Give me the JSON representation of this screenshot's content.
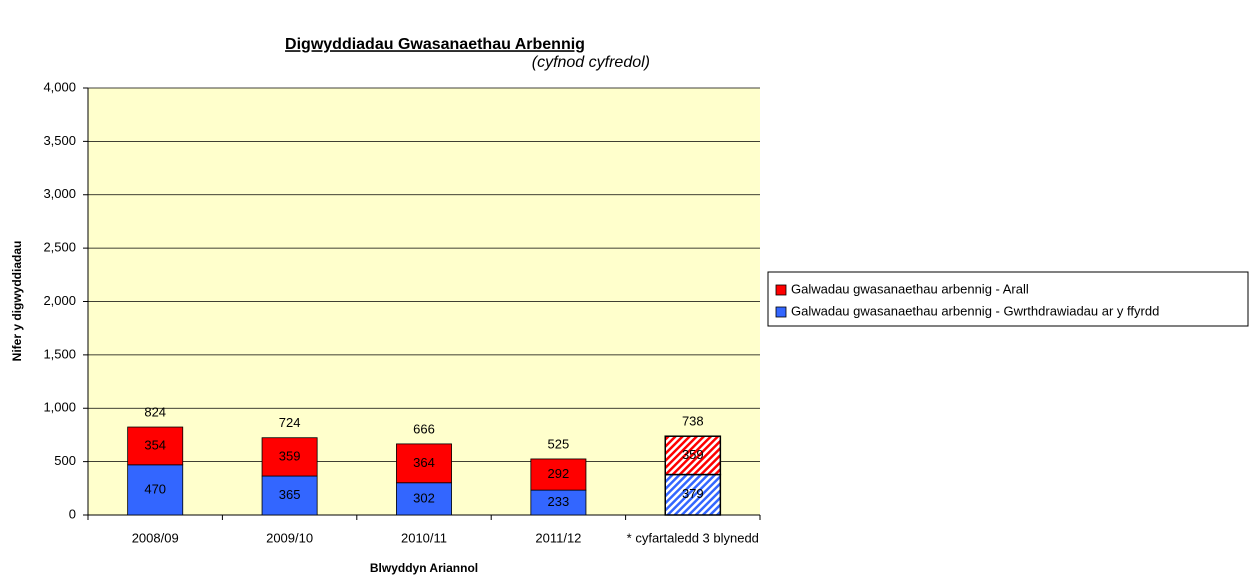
{
  "chart_data": {
    "type": "stacked_bar",
    "title": "Digwyddiadau Gwasanaethau Arbennig",
    "subtitle": "(cyfnod cyfredol)",
    "x_label": "Blwyddyn Ariannol",
    "y_label": "Nifer y digwyddiadau",
    "categories": [
      "2008/09",
      "2009/10",
      "2010/11",
      "2011/12",
      "* cyfartaledd 3 blynedd"
    ],
    "series": [
      {
        "name": "Galwadau gwasanaethau arbennig - Gwrthdrawiadau ar y ffyrdd",
        "color": "#3366ff",
        "values": [
          470,
          365,
          302,
          233,
          379
        ]
      },
      {
        "name": "Galwadau gwasanaethau arbennig - Arall",
        "color": "#ff0000",
        "values": [
          354,
          359,
          364,
          292,
          359
        ]
      }
    ],
    "totals": [
      824,
      724,
      666,
      525,
      738
    ],
    "hatched": [
      false,
      false,
      false,
      false,
      true
    ],
    "ylim": [
      0,
      4000
    ],
    "yticks": [
      0,
      {
        "value": 500,
        "label": "500"
      },
      {
        "value": 1000,
        "label": "1,000"
      },
      {
        "value": 1500,
        "label": "1,500"
      },
      {
        "value": 2000,
        "label": "2,000"
      },
      {
        "value": 2500,
        "label": "2,500"
      },
      {
        "value": 3000,
        "label": "3,000"
      },
      {
        "value": 3500,
        "label": "3,500"
      },
      {
        "value": 4000,
        "label": "4,000"
      }
    ],
    "grid": true,
    "legend_position": "right",
    "plot_background": "#ffffcc"
  }
}
